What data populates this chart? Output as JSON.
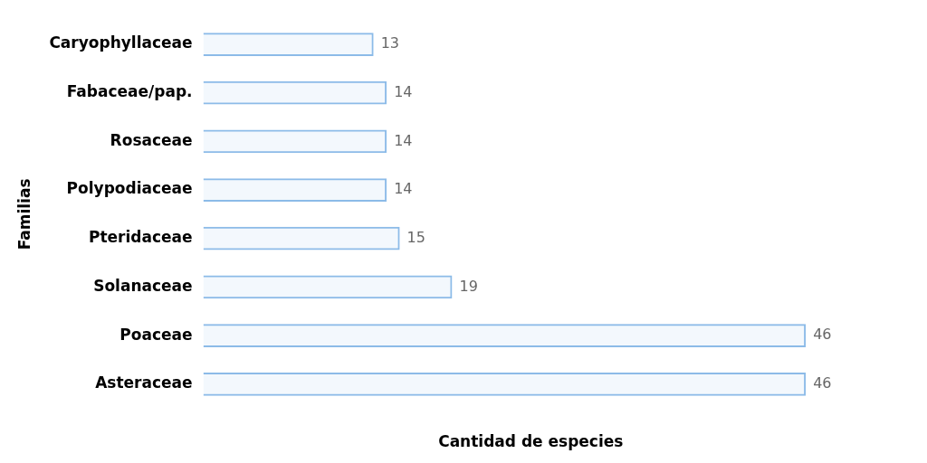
{
  "chart_data": {
    "type": "bar",
    "orientation": "horizontal",
    "xlabel": "Cantidad de especies",
    "ylabel": "Familias",
    "categories": [
      "Caryophyllaceae",
      "Fabaceae/pap.",
      "Rosaceae",
      "Polypodiaceae",
      "Pteridaceae",
      "Solanaceae",
      "Poaceae",
      "Asteraceae"
    ],
    "values": [
      13,
      14,
      14,
      14,
      15,
      19,
      46,
      46
    ],
    "color": "#8cbbe8",
    "data_labels": true,
    "grid": false,
    "legend": false
  }
}
